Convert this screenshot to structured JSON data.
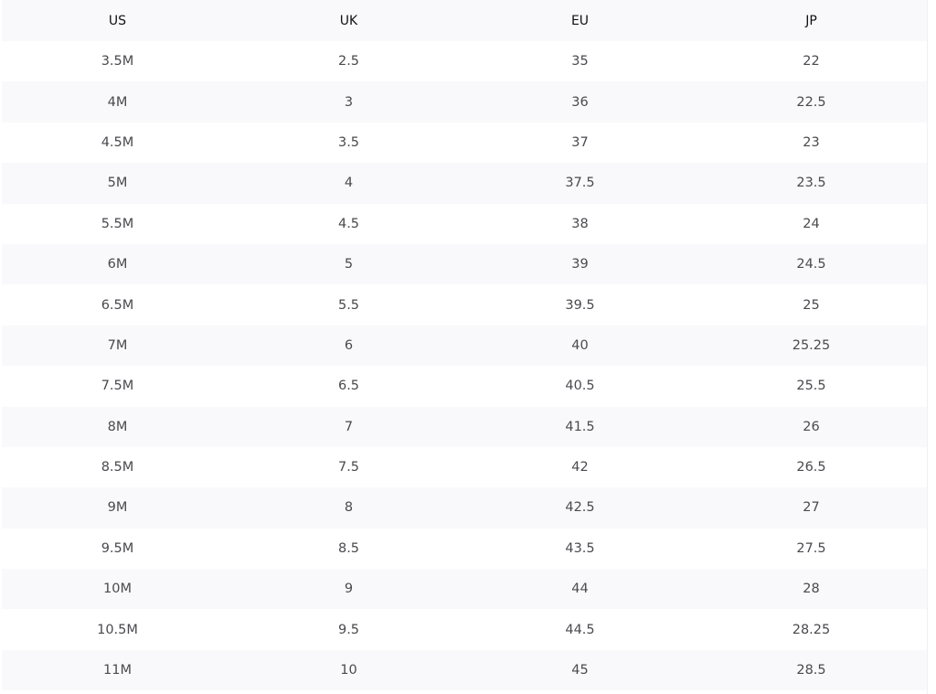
{
  "table": {
    "headers": [
      "US",
      "UK",
      "EU",
      "JP"
    ],
    "rows": [
      [
        "3.5M",
        "2.5",
        "35",
        "22"
      ],
      [
        "4M",
        "3",
        "36",
        "22.5"
      ],
      [
        "4.5M",
        "3.5",
        "37",
        "23"
      ],
      [
        "5M",
        "4",
        "37.5",
        "23.5"
      ],
      [
        "5.5M",
        "4.5",
        "38",
        "24"
      ],
      [
        "6M",
        "5",
        "39",
        "24.5"
      ],
      [
        "6.5M",
        "5.5",
        "39.5",
        "25"
      ],
      [
        "7M",
        "6",
        "40",
        "25.25"
      ],
      [
        "7.5M",
        "6.5",
        "40.5",
        "25.5"
      ],
      [
        "8M",
        "7",
        "41.5",
        "26"
      ],
      [
        "8.5M",
        "7.5",
        "42",
        "26.5"
      ],
      [
        "9M",
        "8",
        "42.5",
        "27"
      ],
      [
        "9.5M",
        "8.5",
        "43.5",
        "27.5"
      ],
      [
        "10M",
        "9",
        "44",
        "28"
      ],
      [
        "10.5M",
        "9.5",
        "44.5",
        "28.25"
      ],
      [
        "11M",
        "10",
        "45",
        "28.5"
      ]
    ]
  }
}
